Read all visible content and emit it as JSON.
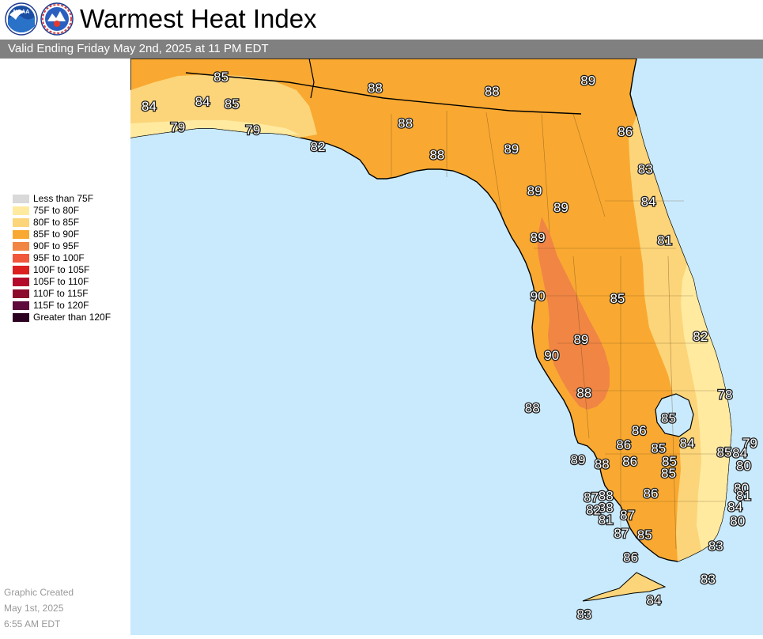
{
  "header": {
    "title": "Warmest Heat Index",
    "subtitle": "Valid Ending Friday May 2nd, 2025 at 11 PM EDT"
  },
  "logos": {
    "noaa": {
      "icon": "noaa-logo-icon",
      "text": "NOAA"
    },
    "nws": {
      "icon": "nws-logo-icon"
    }
  },
  "legend": {
    "items": [
      {
        "label": "Less than 75F",
        "color": "#d9d9d9"
      },
      {
        "label": "75F to 80F",
        "color": "#ffeaa0"
      },
      {
        "label": "80F to 85F",
        "color": "#fcd57a"
      },
      {
        "label": "85F to 90F",
        "color": "#f9a931"
      },
      {
        "label": "90F to 95F",
        "color": "#f08544"
      },
      {
        "label": "95F to 100F",
        "color": "#f0573b"
      },
      {
        "label": "100F to 105F",
        "color": "#dc2020"
      },
      {
        "label": "105F to 110F",
        "color": "#b40a2b"
      },
      {
        "label": "110F to 115F",
        "color": "#8c0a2c"
      },
      {
        "label": "115F to 120F",
        "color": "#5e0a3c"
      },
      {
        "label": "Greater than 120F",
        "color": "#2b0020"
      }
    ]
  },
  "created": {
    "line1": "Graphic Created",
    "line2": "May 1st, 2025",
    "line3": "6:55 AM EDT"
  },
  "map": {
    "water_color": "#c8eafc",
    "values": [
      {
        "value": "85",
        "lon": -86.9,
        "lat": 30.98
      },
      {
        "value": "89",
        "lon": -82.16,
        "lat": 30.94
      },
      {
        "value": "84",
        "lon": -87.83,
        "lat": 30.63
      },
      {
        "value": "84",
        "lon": -87.14,
        "lat": 30.69
      },
      {
        "value": "85",
        "lon": -86.76,
        "lat": 30.66
      },
      {
        "value": "88",
        "lon": -84.91,
        "lat": 30.85
      },
      {
        "value": "88",
        "lon": -83.4,
        "lat": 30.81
      },
      {
        "value": "79",
        "lon": -87.46,
        "lat": 30.38
      },
      {
        "value": "79",
        "lon": -86.49,
        "lat": 30.35
      },
      {
        "value": "88",
        "lon": -84.52,
        "lat": 30.43
      },
      {
        "value": "86",
        "lon": -81.68,
        "lat": 30.33
      },
      {
        "value": "82",
        "lon": -85.65,
        "lat": 30.15
      },
      {
        "value": "88",
        "lon": -84.11,
        "lat": 30.05
      },
      {
        "value": "89",
        "lon": -83.15,
        "lat": 30.12
      },
      {
        "value": "83",
        "lon": -81.42,
        "lat": 29.88
      },
      {
        "value": "89",
        "lon": -82.85,
        "lat": 29.62
      },
      {
        "value": "84",
        "lon": -81.38,
        "lat": 29.49
      },
      {
        "value": "89",
        "lon": -82.51,
        "lat": 29.42
      },
      {
        "value": "89",
        "lon": -82.81,
        "lat": 29.06
      },
      {
        "value": "81",
        "lon": -81.17,
        "lat": 29.03
      },
      {
        "value": "90",
        "lon": -82.81,
        "lat": 28.36
      },
      {
        "value": "85",
        "lon": -81.78,
        "lat": 28.33
      },
      {
        "value": "82",
        "lon": -80.71,
        "lat": 27.88
      },
      {
        "value": "89",
        "lon": -82.25,
        "lat": 27.84
      },
      {
        "value": "90",
        "lon": -82.63,
        "lat": 27.65
      },
      {
        "value": "88",
        "lon": -82.21,
        "lat": 27.2
      },
      {
        "value": "78",
        "lon": -80.39,
        "lat": 27.18
      },
      {
        "value": "88",
        "lon": -82.88,
        "lat": 27.02
      },
      {
        "value": "85",
        "lon": -81.12,
        "lat": 26.9
      },
      {
        "value": "86",
        "lon": -81.5,
        "lat": 26.75
      },
      {
        "value": "84",
        "lon": -80.88,
        "lat": 26.6
      },
      {
        "value": "79",
        "lon": -80.07,
        "lat": 26.6
      },
      {
        "value": "86",
        "lon": -81.7,
        "lat": 26.58
      },
      {
        "value": "85",
        "lon": -81.25,
        "lat": 26.54
      },
      {
        "value": "85",
        "lon": -80.4,
        "lat": 26.49
      },
      {
        "value": "84",
        "lon": -80.2,
        "lat": 26.48
      },
      {
        "value": "89",
        "lon": -82.29,
        "lat": 26.4
      },
      {
        "value": "88",
        "lon": -81.98,
        "lat": 26.35
      },
      {
        "value": "86",
        "lon": -81.62,
        "lat": 26.38
      },
      {
        "value": "85",
        "lon": -81.11,
        "lat": 26.38
      },
      {
        "value": "80",
        "lon": -80.15,
        "lat": 26.33
      },
      {
        "value": "85",
        "lon": -81.12,
        "lat": 26.24
      },
      {
        "value": "80",
        "lon": -80.18,
        "lat": 26.06
      },
      {
        "value": "88",
        "lon": -81.93,
        "lat": 25.97
      },
      {
        "value": "86",
        "lon": -81.35,
        "lat": 26.0
      },
      {
        "value": "87",
        "lon": -82.12,
        "lat": 25.95
      },
      {
        "value": "81",
        "lon": -80.15,
        "lat": 25.97
      },
      {
        "value": "88",
        "lon": -81.93,
        "lat": 25.83
      },
      {
        "value": "84",
        "lon": -80.26,
        "lat": 25.84
      },
      {
        "value": "82",
        "lon": -82.09,
        "lat": 25.8
      },
      {
        "value": "87",
        "lon": -81.65,
        "lat": 25.74
      },
      {
        "value": "81",
        "lon": -81.93,
        "lat": 25.68
      },
      {
        "value": "80",
        "lon": -80.23,
        "lat": 25.67
      },
      {
        "value": "87",
        "lon": -81.73,
        "lat": 25.52
      },
      {
        "value": "85",
        "lon": -81.43,
        "lat": 25.5
      },
      {
        "value": "83",
        "lon": -80.51,
        "lat": 25.37
      },
      {
        "value": "86",
        "lon": -81.61,
        "lat": 25.23
      },
      {
        "value": "83",
        "lon": -80.61,
        "lat": 24.97
      },
      {
        "value": "84",
        "lon": -81.31,
        "lat": 24.72
      },
      {
        "value": "83",
        "lon": -82.21,
        "lat": 24.55
      }
    ]
  }
}
